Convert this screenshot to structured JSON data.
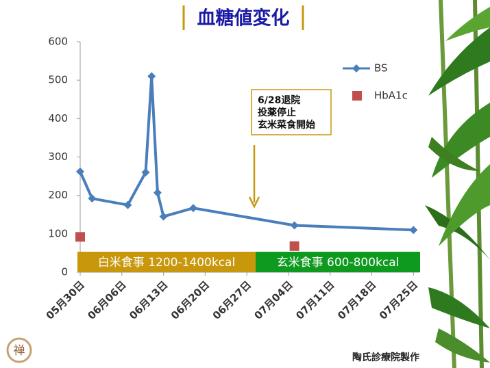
{
  "chart_data": {
    "type": "line",
    "title": "血糖値変化",
    "xlim": [
      "05-30",
      "07-26"
    ],
    "xticks": [
      {
        "value": "05-30",
        "label": "05月30日"
      },
      {
        "value": "06-06",
        "label": "06月06日"
      },
      {
        "value": "06-13",
        "label": "06月13日"
      },
      {
        "value": "06-20",
        "label": "06月20日"
      },
      {
        "value": "06-27",
        "label": "06月27日"
      },
      {
        "value": "07-04",
        "label": "07月04日"
      },
      {
        "value": "07-11",
        "label": "07月11日"
      },
      {
        "value": "07-18",
        "label": "07月18日"
      },
      {
        "value": "07-25",
        "label": "07月25日"
      }
    ],
    "ylim": [
      0,
      600
    ],
    "yticks": [
      0,
      100,
      200,
      300,
      400,
      500,
      600
    ],
    "grid": false,
    "legend": "upper right",
    "series": [
      {
        "name": "BS",
        "color": "#4a7ebb",
        "marker": "diamond",
        "line": true,
        "x": [
          "05-30",
          "06-01",
          "06-07",
          "06-10",
          "06-11",
          "06-12",
          "06-13",
          "06-18",
          "07-05",
          "07-25"
        ],
        "values": [
          262,
          192,
          175,
          260,
          510,
          207,
          145,
          167,
          122,
          110
        ]
      },
      {
        "name": "HbA1c",
        "color": "#c0504d",
        "marker": "square",
        "line": false,
        "x": [
          "05-30",
          "07-05"
        ],
        "values": [
          92,
          68
        ]
      }
    ],
    "annotation": {
      "lines": [
        "6/28退院",
        "投薬停止",
        "玄米菜食開始"
      ]
    },
    "bands": [
      {
        "label": "白米食事  1200-1400kcal",
        "color": "#c8970c"
      },
      {
        "label": "玄米食事  600-800kcal",
        "color": "#0e9a1e"
      }
    ],
    "footer": "陶氏診療院製作",
    "logo": "禅"
  }
}
